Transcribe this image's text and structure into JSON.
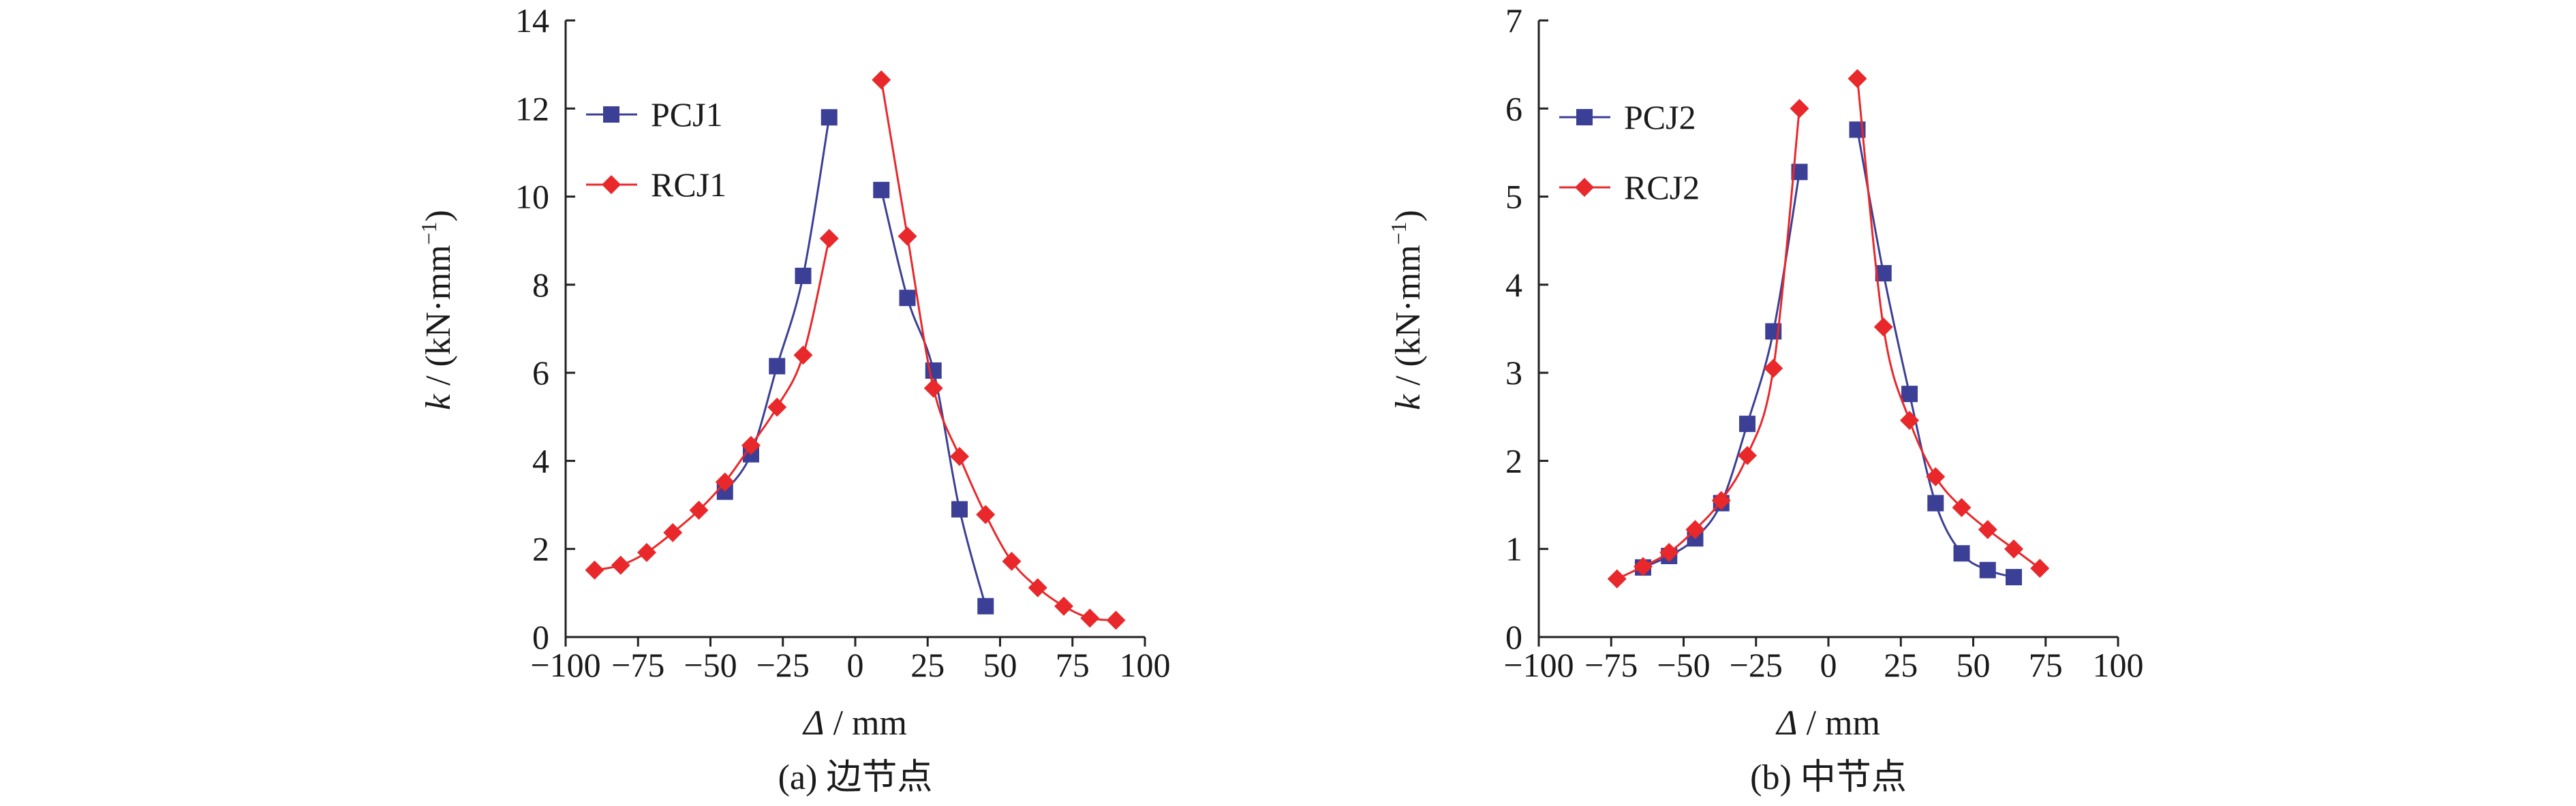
{
  "chart_data": [
    {
      "type": "line",
      "caption": "(a) 边节点",
      "ylabel_var": "k",
      "ylabel_rest": " / (kN·mm",
      "ylabel_sup": "−1",
      "ylabel_close": ")",
      "xlabel_var": "Δ",
      "xlabel_rest": " / mm",
      "xlim": [
        -100,
        100
      ],
      "ylim": [
        0,
        14
      ],
      "xticks": [
        -100,
        -75,
        -50,
        -25,
        0,
        25,
        50,
        75,
        100
      ],
      "xtick_labels": [
        "−100",
        "−75",
        "−50",
        "−25",
        "0",
        "25",
        "50",
        "75",
        "100"
      ],
      "yticks": [
        0,
        2,
        4,
        6,
        8,
        10,
        12,
        14
      ],
      "ytick_labels": [
        "0",
        "2",
        "4",
        "6",
        "8",
        "10",
        "12",
        "14"
      ],
      "grid": false,
      "legend_position": "top-left",
      "series": [
        {
          "name": "PCJ1",
          "color": "#3b3f95",
          "marker": "square",
          "segments": [
            [
              [
                -45,
                3.3
              ],
              [
                -36,
                4.15
              ],
              [
                -27,
                6.15
              ],
              [
                -18,
                8.2
              ],
              [
                -9,
                11.8
              ]
            ],
            [
              [
                9,
                10.15
              ],
              [
                18,
                7.7
              ],
              [
                27,
                6.05
              ],
              [
                36,
                2.9
              ],
              [
                45,
                0.7
              ]
            ]
          ]
        },
        {
          "name": "RCJ1",
          "color": "#e8282b",
          "marker": "diamond",
          "segments": [
            [
              [
                -90,
                1.52
              ],
              [
                -81,
                1.63
              ],
              [
                -72,
                1.92
              ],
              [
                -63,
                2.37
              ],
              [
                -54,
                2.88
              ],
              [
                -45,
                3.52
              ],
              [
                -36,
                4.35
              ],
              [
                -27,
                5.22
              ],
              [
                -18,
                6.4
              ],
              [
                -9,
                9.05
              ]
            ],
            [
              [
                9,
                12.65
              ],
              [
                18,
                9.1
              ],
              [
                27,
                5.65
              ],
              [
                36,
                4.1
              ],
              [
                45,
                2.78
              ],
              [
                54,
                1.72
              ],
              [
                63,
                1.12
              ],
              [
                72,
                0.7
              ],
              [
                81,
                0.43
              ],
              [
                90,
                0.38
              ]
            ]
          ]
        }
      ]
    },
    {
      "type": "line",
      "caption": "(b) 中节点",
      "ylabel_var": "k",
      "ylabel_rest": " / (kN·mm",
      "ylabel_sup": "−1",
      "ylabel_close": ")",
      "xlabel_var": "Δ",
      "xlabel_rest": " / mm",
      "xlim": [
        -100,
        100
      ],
      "ylim": [
        0,
        7
      ],
      "xticks": [
        -100,
        -75,
        -50,
        -25,
        0,
        25,
        50,
        75,
        100
      ],
      "xtick_labels": [
        "−100",
        "−75",
        "−50",
        "−25",
        "0",
        "25",
        "50",
        "75",
        "100"
      ],
      "yticks": [
        0,
        1,
        2,
        3,
        4,
        5,
        6,
        7
      ],
      "ytick_labels": [
        "0",
        "1",
        "2",
        "3",
        "4",
        "5",
        "6",
        "7"
      ],
      "grid": false,
      "legend_position": "top-left",
      "series": [
        {
          "name": "PCJ2",
          "color": "#3b3f95",
          "marker": "square",
          "segments": [
            [
              [
                -64,
                0.79
              ],
              [
                -55,
                0.92
              ],
              [
                -46,
                1.12
              ],
              [
                -37,
                1.52
              ],
              [
                -28,
                2.42
              ],
              [
                -19,
                3.47
              ],
              [
                -10,
                5.28
              ]
            ],
            [
              [
                10,
                5.76
              ],
              [
                19,
                4.13
              ],
              [
                28,
                2.76
              ],
              [
                37,
                1.52
              ],
              [
                46,
                0.95
              ],
              [
                55,
                0.76
              ],
              [
                64,
                0.68
              ]
            ]
          ]
        },
        {
          "name": "RCJ2",
          "color": "#e8282b",
          "marker": "diamond",
          "segments": [
            [
              [
                -73,
                0.66
              ],
              [
                -64,
                0.8
              ],
              [
                -55,
                0.96
              ],
              [
                -46,
                1.22
              ],
              [
                -37,
                1.55
              ],
              [
                -28,
                2.06
              ],
              [
                -19,
                3.05
              ],
              [
                -10,
                6.0
              ]
            ],
            [
              [
                10,
                6.34
              ],
              [
                19,
                3.52
              ],
              [
                28,
                2.46
              ],
              [
                37,
                1.82
              ],
              [
                46,
                1.47
              ],
              [
                55,
                1.22
              ],
              [
                64,
                1.0
              ],
              [
                73,
                0.78
              ]
            ]
          ]
        }
      ]
    }
  ]
}
